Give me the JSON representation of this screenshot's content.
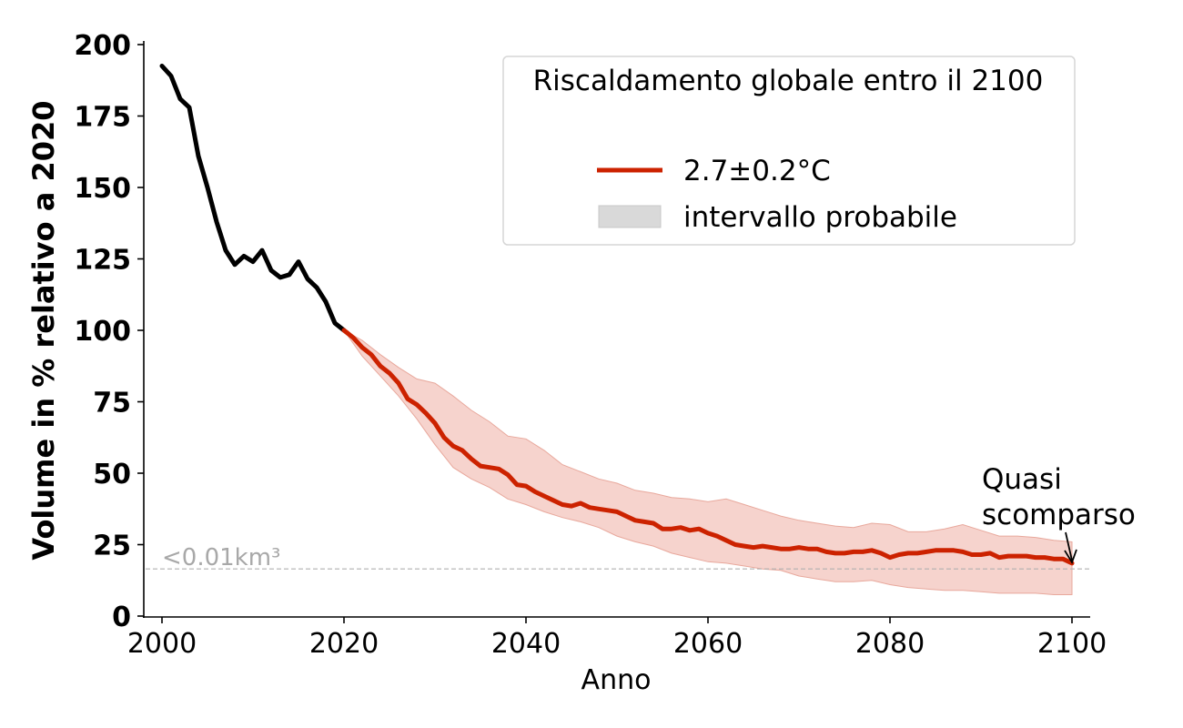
{
  "chart_data": {
    "type": "line",
    "xlabel": "Anno",
    "ylabel": "Volume in % relativo a 2020",
    "xlim": [
      1998,
      2102
    ],
    "ylim": [
      0,
      200
    ],
    "x_ticks": [
      2000,
      2020,
      2040,
      2060,
      2080,
      2100
    ],
    "y_ticks": [
      0,
      25,
      50,
      75,
      100,
      125,
      150,
      175,
      200
    ],
    "grid": false,
    "legend": {
      "title": "Riscaldamento globale entro il 2100",
      "placement": "top-right",
      "entries": [
        {
          "label": "2.7±0.2°C",
          "kind": "line",
          "color": "#cc2200"
        },
        {
          "label": "intervallo probabile",
          "kind": "patch",
          "color": "#d9d9d9"
        }
      ]
    },
    "reference_line": {
      "y": 16.5,
      "label": "<0.01km³",
      "color": "#b0b0b0"
    },
    "annotation": {
      "lines": [
        "Quasi",
        "scomparso"
      ],
      "target": {
        "x": 2100,
        "y": 18.5
      }
    },
    "observed": {
      "color": "#000000",
      "x": [
        2000,
        2001,
        2002,
        2003,
        2004,
        2005,
        2006,
        2007,
        2008,
        2009,
        2010,
        2011,
        2012,
        2013,
        2014,
        2015,
        2016,
        2017,
        2018,
        2019,
        2020
      ],
      "y": [
        192.5,
        189,
        181,
        178,
        161,
        150,
        138,
        128,
        123,
        126,
        124,
        128,
        121,
        118.5,
        119.5,
        124,
        118,
        115,
        110,
        102.5,
        100
      ]
    },
    "projection": {
      "color": "#cc2200",
      "x": [
        2020,
        2021,
        2022,
        2023,
        2024,
        2025,
        2026,
        2027,
        2028,
        2029,
        2030,
        2031,
        2032,
        2033,
        2034,
        2035,
        2036,
        2037,
        2038,
        2039,
        2040,
        2041,
        2042,
        2043,
        2044,
        2045,
        2046,
        2047,
        2048,
        2049,
        2050,
        2051,
        2052,
        2053,
        2054,
        2055,
        2056,
        2057,
        2058,
        2059,
        2060,
        2061,
        2062,
        2063,
        2064,
        2065,
        2066,
        2067,
        2068,
        2069,
        2070,
        2071,
        2072,
        2073,
        2074,
        2075,
        2076,
        2077,
        2078,
        2079,
        2080,
        2081,
        2082,
        2083,
        2084,
        2085,
        2086,
        2087,
        2088,
        2089,
        2090,
        2091,
        2092,
        2093,
        2094,
        2095,
        2096,
        2097,
        2098,
        2099,
        2100
      ],
      "y": [
        100,
        97.5,
        94,
        91.5,
        87.5,
        85,
        81.5,
        76,
        74,
        71,
        67.5,
        62.5,
        59.5,
        58,
        55,
        52.5,
        52,
        51.5,
        49.5,
        46,
        45.5,
        43.5,
        42,
        40.5,
        39,
        38.5,
        39.5,
        38,
        37.5,
        37,
        36.5,
        35,
        33.5,
        33,
        32.5,
        30.5,
        30.5,
        31,
        30,
        30.5,
        29,
        28,
        26.5,
        25,
        24.5,
        24,
        24.5,
        24,
        23.5,
        23.5,
        24,
        23.5,
        23.5,
        22.5,
        22,
        22,
        22.5,
        22.5,
        23,
        22,
        20.5,
        21.5,
        22,
        22,
        22.5,
        23,
        23,
        23,
        22.5,
        21.5,
        21.5,
        22,
        20.5,
        21,
        21,
        21,
        20.5,
        20.5,
        20,
        20,
        18.5
      ]
    },
    "likely_range": {
      "color": "#f5cbc4",
      "x": [
        2020,
        2022,
        2024,
        2026,
        2028,
        2030,
        2032,
        2034,
        2036,
        2038,
        2040,
        2042,
        2044,
        2046,
        2048,
        2050,
        2052,
        2054,
        2056,
        2058,
        2060,
        2062,
        2064,
        2066,
        2068,
        2070,
        2072,
        2074,
        2076,
        2078,
        2080,
        2082,
        2084,
        2086,
        2088,
        2090,
        2092,
        2094,
        2096,
        2098,
        2100
      ],
      "upper": [
        100,
        96.5,
        91.5,
        87,
        83,
        81.5,
        77,
        72,
        68,
        63,
        62,
        58,
        53,
        50.5,
        48,
        46.5,
        44,
        43,
        41.5,
        41,
        40,
        41,
        39,
        37,
        35,
        33.5,
        32.5,
        31.5,
        31,
        32.5,
        32,
        29.5,
        29.5,
        30.5,
        32,
        30,
        28,
        28,
        27.5,
        26.5,
        26
      ],
      "lower": [
        100,
        91,
        84,
        77,
        69,
        60,
        52,
        48,
        45,
        41,
        39,
        36.5,
        34.5,
        33,
        31,
        28,
        26,
        24.5,
        22,
        20.5,
        19,
        18.5,
        17.5,
        16.5,
        16,
        14,
        13,
        12,
        12,
        12.5,
        11,
        10,
        9.5,
        9,
        9,
        8.5,
        8,
        8,
        8,
        7.5,
        7.5
      ]
    }
  }
}
